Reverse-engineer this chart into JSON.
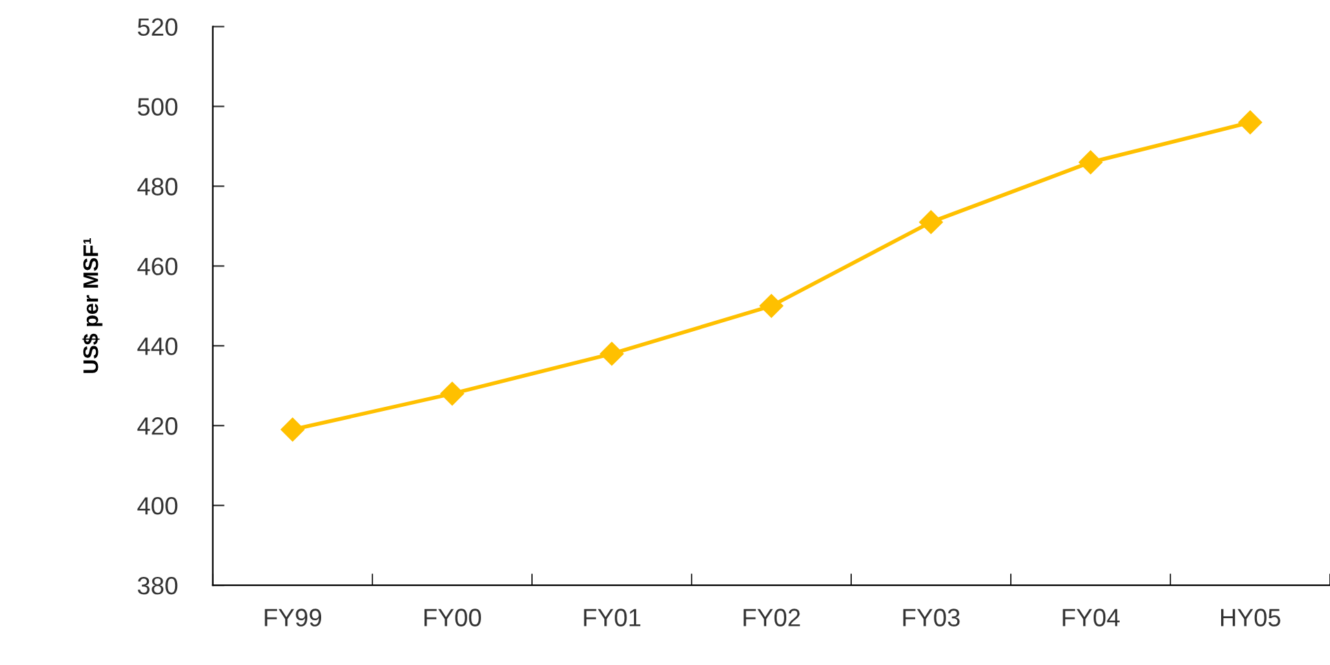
{
  "chart_data": {
    "type": "line",
    "ylabel": "US$ per MSF¹",
    "categories": [
      "FY99",
      "FY00",
      "FY01",
      "FY02",
      "FY03",
      "FY04",
      "HY05"
    ],
    "series": [
      {
        "color": "#ffc000",
        "values": [
          419,
          428,
          438,
          450,
          471,
          486,
          496
        ]
      }
    ],
    "ylim": [
      380,
      520
    ],
    "yticks": [
      380,
      400,
      420,
      440,
      460,
      480,
      500,
      520
    ],
    "marker": "diamond",
    "line_style": "solid",
    "grid": false,
    "legend": false
  }
}
